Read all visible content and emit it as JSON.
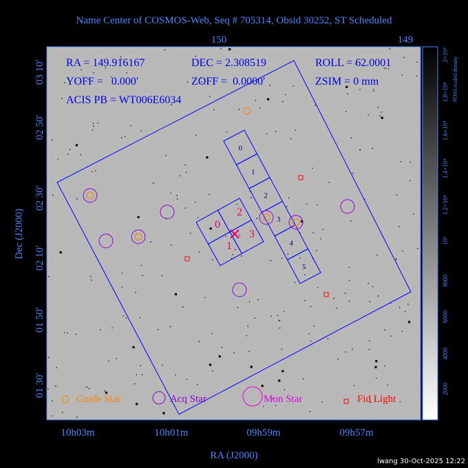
{
  "header": {
    "title": "Name Center of COSMOS-Web, Seq # 705314, Obsid 30252, ST Scheduled"
  },
  "axes": {
    "x_title": "RA (J2000)",
    "y_title": "Dec (J2000)",
    "top_ticks": [
      "150",
      "149"
    ],
    "bottom_ticks": [
      "10h03m",
      "10h01m",
      "09h59m",
      "09h57m"
    ],
    "left_ticks": [
      "03 10'",
      "02 50'",
      "02 30'",
      "02 10'",
      "01 50'",
      "01 30'"
    ]
  },
  "info": {
    "ra": "RA = 149.916167",
    "dec": "DEC = 2.308519",
    "roll": "ROLL = 62.0001",
    "yoff": "YOFF =   0.000'",
    "zoff": "ZOFF =  0.0000'",
    "zsim": "ZSIM = 0 mm",
    "acis_pb": "ACIS PB = WT006E6034"
  },
  "chips": {
    "acis_s": [
      "0",
      "1",
      "2",
      "3",
      "4",
      "5"
    ],
    "acis_i": [
      "0",
      "2",
      "1",
      "3"
    ]
  },
  "legend": {
    "guide": "Guide Star",
    "acq": "Acq Star",
    "mon": "Mon Star",
    "fid": "Fid Light"
  },
  "colorbar": {
    "title": "POSS scaled density",
    "ticks": [
      "2×10⁴",
      "1.8×10⁴",
      "1.6×10⁴",
      "1.4×10⁴",
      "1.2×10⁴",
      "10⁴",
      "8000",
      "6000",
      "4000",
      "2000"
    ]
  },
  "footer": {
    "stamp": "lwang 30-Oct-2025 12:22"
  }
}
